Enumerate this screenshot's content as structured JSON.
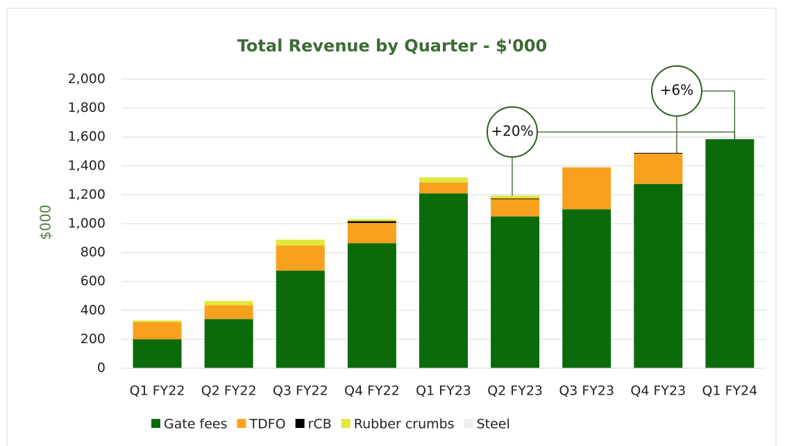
{
  "chart_data": {
    "type": "stacked_bar",
    "title": "Total Revenue by Quarter - $'000",
    "y_label": "$000",
    "categories": [
      "Q1 FY22",
      "Q2 FY22",
      "Q3 FY22",
      "Q4 FY22",
      "Q1 FY23",
      "Q2 FY23",
      "Q3 FY23",
      "Q4 FY23",
      "Q1 FY24"
    ],
    "series": [
      {
        "name": "Gate fees",
        "color": "#0b6b0b",
        "values": [
          200,
          340,
          675,
          865,
          1210,
          1050,
          1100,
          1275,
          1585
        ]
      },
      {
        "name": "TDFO",
        "color": "#f8a11f",
        "values": [
          120,
          95,
          175,
          140,
          75,
          120,
          290,
          210,
          0
        ]
      },
      {
        "name": "rCB",
        "color": "#000000",
        "values": [
          0,
          0,
          0,
          12,
          0,
          5,
          0,
          5,
          0
        ]
      },
      {
        "name": "Rubber crumbs",
        "color": "#e2e83a",
        "values": [
          10,
          30,
          40,
          15,
          35,
          20,
          0,
          0,
          0
        ]
      },
      {
        "name": "Steel",
        "color": "#eeeeee",
        "values": [
          0,
          0,
          0,
          0,
          0,
          0,
          5,
          0,
          0
        ]
      }
    ],
    "ylim": [
      0,
      2000
    ],
    "yticks": [
      0,
      {
        "value": 200,
        "label": "200"
      },
      400,
      600,
      800,
      {
        "value": 1000,
        "label": "1,000"
      },
      {
        "value": 1200,
        "label": "1,200"
      },
      {
        "value": 1400,
        "label": "1,400"
      },
      {
        "value": 1600,
        "label": "1,600"
      },
      {
        "value": 1800,
        "label": "1,800"
      },
      {
        "value": 2000,
        "label": "2,000"
      }
    ],
    "grid": true,
    "legend": "bottom",
    "annotations": [
      {
        "text": "+20%"
      },
      {
        "text": "+6%"
      }
    ]
  }
}
